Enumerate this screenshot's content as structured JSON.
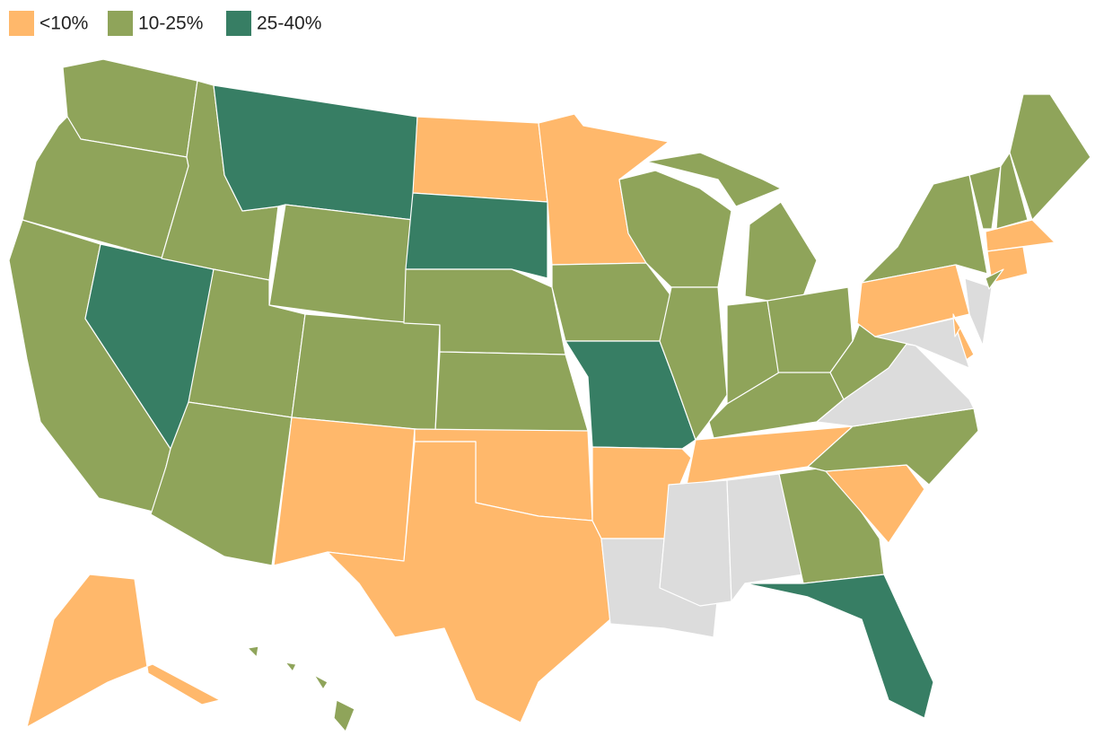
{
  "legend": [
    {
      "label": "<10%",
      "color": "#ffb86b"
    },
    {
      "label": "10-25%",
      "color": "#8fa45a"
    },
    {
      "label": "25-40%",
      "color": "#377e64"
    }
  ],
  "no_data_color": "#dcdcdc",
  "regions": [
    1,
    1,
    1,
    2,
    1,
    2,
    1,
    1,
    1,
    1,
    0,
    0,
    2,
    1,
    1,
    0,
    0,
    0,
    1,
    2,
    0,
    null,
    1,
    1,
    1,
    1,
    1,
    1,
    1,
    0,
    null,
    null,
    1,
    2,
    0,
    1,
    null,
    1,
    1,
    0,
    1,
    0,
    null,
    null,
    0,
    1,
    1,
    1,
    0,
    0,
    0,
    1
  ]
}
